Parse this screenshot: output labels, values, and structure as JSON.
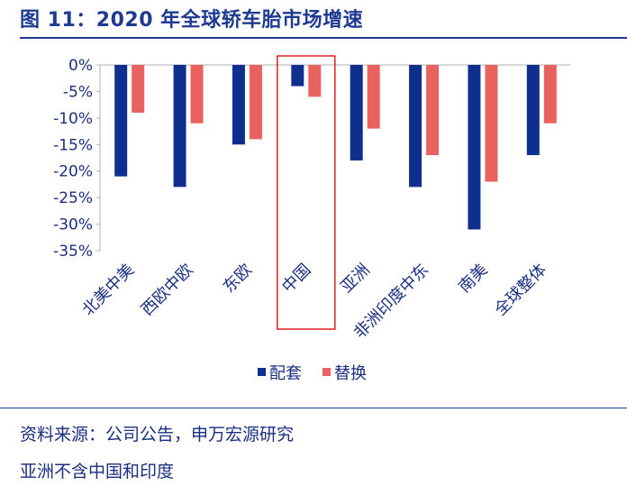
{
  "figure": {
    "title": "图 11：2020 年全球轿车胎市场增速",
    "source": "资料来源：公司公告，申万宏源研究",
    "note": "亚洲不含中国和印度"
  },
  "chart_data": {
    "type": "bar",
    "categories": [
      "北美中美",
      "西欧中欧",
      "东欧",
      "中国",
      "亚洲",
      "非洲印度中东",
      "南美",
      "全球整体"
    ],
    "series": [
      {
        "name": "配套",
        "color": "#0f2f8f",
        "values": [
          -21,
          -23,
          -15,
          -4,
          -18,
          -23,
          -31,
          -17
        ]
      },
      {
        "name": "替换",
        "color": "#e8625f",
        "values": [
          -9,
          -11,
          -14,
          -6,
          -12,
          -17,
          -22,
          -11
        ]
      }
    ],
    "y_ticks": [
      "0%",
      "-5%",
      "-10%",
      "-15%",
      "-20%",
      "-25%",
      "-30%",
      "-35%"
    ],
    "ylim": [
      -35,
      0
    ],
    "grid": false,
    "legend_position": "bottom",
    "highlight_category": "中国",
    "highlight_color": "#e02020"
  }
}
